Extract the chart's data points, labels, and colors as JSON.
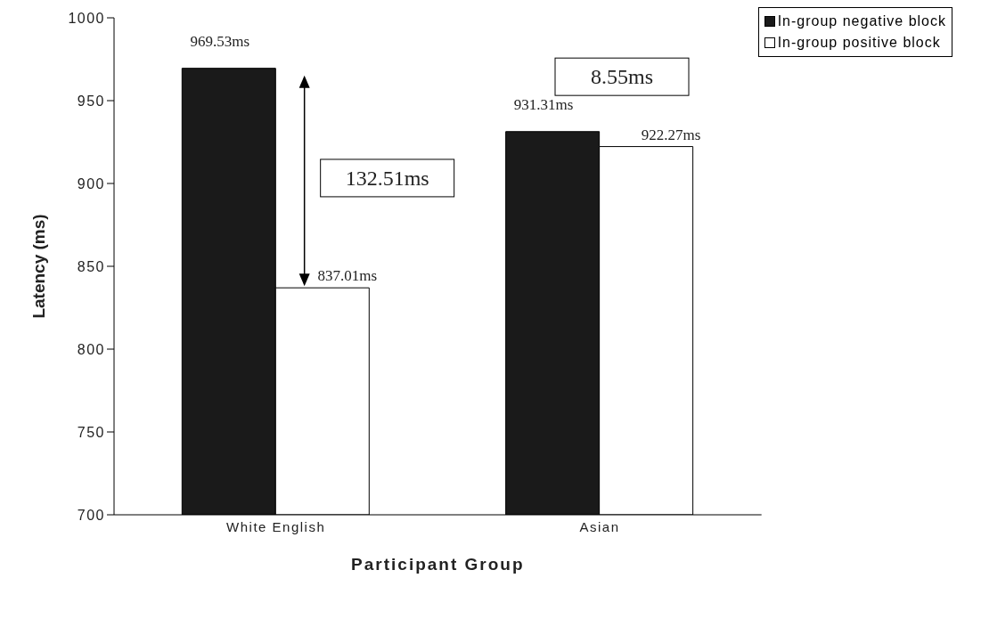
{
  "chart_data": {
    "type": "bar",
    "xlabel": "Participant Group",
    "ylabel": "Latency (ms)",
    "categories": [
      "White English",
      "Asian"
    ],
    "series": [
      {
        "name": "In-group negative block",
        "color": "#1a1a1a",
        "values": [
          969.53,
          931.31
        ],
        "value_labels": [
          "969.53ms",
          "931.31ms"
        ]
      },
      {
        "name": "In-group positive block",
        "color": "#ffffff",
        "values": [
          837.01,
          922.27
        ],
        "value_labels": [
          "837.01ms",
          "922.27ms"
        ]
      }
    ],
    "ylim": [
      700,
      1000
    ],
    "yticks": [
      700,
      750,
      800,
      850,
      900,
      950,
      1000
    ],
    "grid": false,
    "legend": "top right",
    "annotations": [
      "132.51ms",
      "8.55ms"
    ]
  }
}
